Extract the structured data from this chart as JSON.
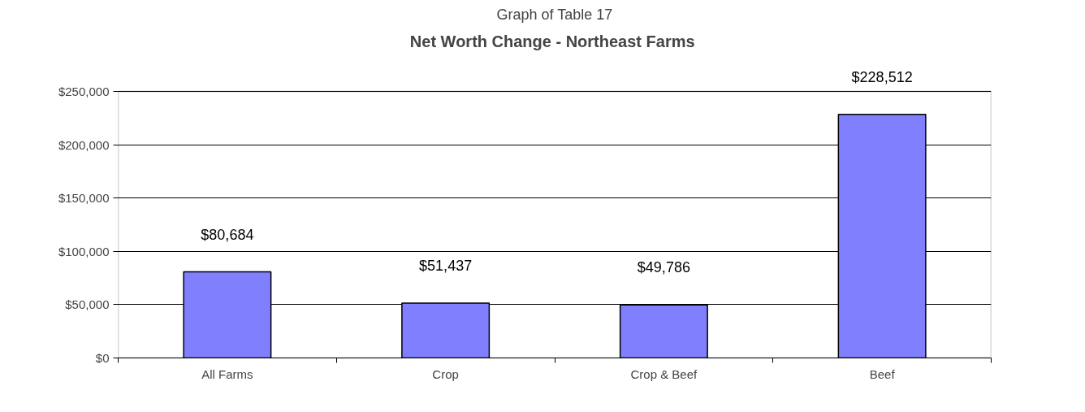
{
  "chart_data": {
    "type": "bar",
    "title": "Graph of Table 17",
    "subtitle": " Net Worth Change - Northeast Farms",
    "categories": [
      "All Farms",
      "Crop",
      "Crop & Beef",
      "Beef"
    ],
    "values": [
      80684,
      51437,
      49786,
      228512
    ],
    "color": "#8080ff",
    "ylim": [
      0,
      250000
    ],
    "yticks": [
      {
        "value": 0,
        "label": "$0"
      },
      {
        "value": 50000,
        "label": "$50,000"
      },
      {
        "value": 100000,
        "label": "$100,000"
      },
      {
        "value": 150000,
        "label": "$150,000"
      },
      {
        "value": 200000,
        "label": "$200,000"
      },
      {
        "value": 250000,
        "label": "$250,000"
      }
    ],
    "value_labels": [
      "$80,684",
      "$51,437",
      "$49,786",
      "$228,512"
    ],
    "grid": "y"
  }
}
